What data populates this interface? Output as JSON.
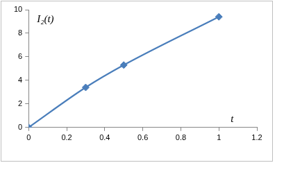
{
  "chart_data": {
    "type": "line",
    "ylabel": "I₂(t)",
    "xlabel": "t",
    "x": [
      0,
      0.3,
      0.5,
      1
    ],
    "values": [
      0,
      3.4,
      5.3,
      9.4
    ],
    "color": "#4a7ebb",
    "marker": "diamond",
    "line_style": "solid",
    "xlim": [
      0,
      1.2
    ],
    "xticks": [
      0,
      0.2,
      0.4,
      0.6,
      0.8,
      1,
      1.2
    ],
    "ylim": [
      0,
      10
    ],
    "yticks": [
      0,
      2,
      4,
      6,
      8,
      10
    ],
    "grid": false
  }
}
